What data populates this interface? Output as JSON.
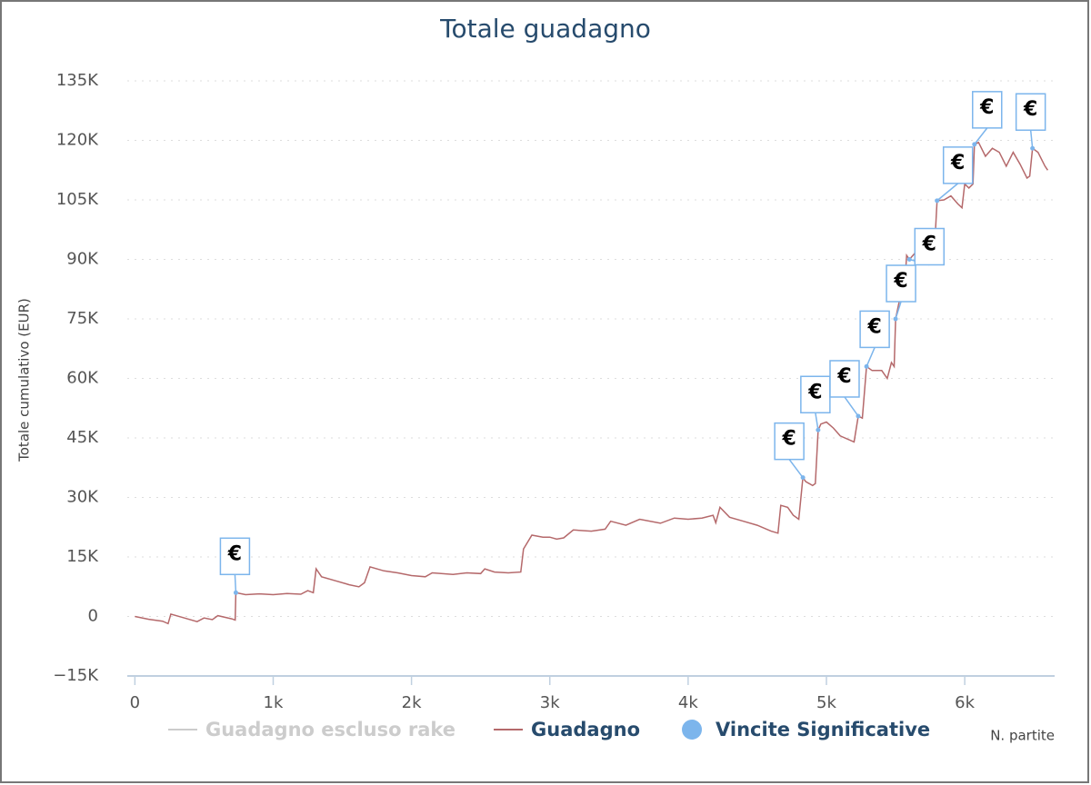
{
  "chart_data": {
    "type": "line",
    "title": "Totale guadagno",
    "ylabel": "Totale cumulativo (EUR)",
    "xlabel": "N. partite",
    "xlim": [
      -55,
      6650
    ],
    "ylim": [
      -15000,
      135000
    ],
    "xticks": [
      0,
      {
        "value": 1000,
        "label": "1k"
      },
      {
        "value": 2000,
        "label": "2k"
      },
      {
        "value": 3000,
        "label": "3k"
      },
      {
        "value": 4000,
        "label": "4k"
      },
      {
        "value": 5000,
        "label": "5k"
      },
      {
        "value": 6000,
        "label": "6k"
      }
    ],
    "yticks": [
      {
        "value": -15000,
        "label": "−15K"
      },
      0,
      {
        "value": 15000,
        "label": "15K"
      },
      {
        "value": 30000,
        "label": "30K"
      },
      {
        "value": 45000,
        "label": "45K"
      },
      {
        "value": 60000,
        "label": "60K"
      },
      {
        "value": 75000,
        "label": "75K"
      },
      {
        "value": 90000,
        "label": "90K"
      },
      {
        "value": 105000,
        "label": "105K"
      },
      {
        "value": 120000,
        "label": "120K"
      },
      {
        "value": 135000,
        "label": "135K"
      }
    ],
    "grid": true,
    "hidden_series": [
      {
        "name": "Guadagno escluso rake",
        "color": "#cccccc"
      }
    ],
    "series": [
      {
        "name": "Guadagno",
        "color": "#b5696b",
        "x": [
          0,
          100,
          200,
          240,
          260,
          350,
          450,
          500,
          560,
          600,
          700,
          725,
          730,
          800,
          900,
          1000,
          1100,
          1200,
          1250,
          1290,
          1310,
          1350,
          1450,
          1550,
          1620,
          1660,
          1700,
          1800,
          1900,
          2000,
          2100,
          2150,
          2300,
          2400,
          2500,
          2530,
          2600,
          2700,
          2790,
          2810,
          2870,
          2950,
          3000,
          3050,
          3100,
          3170,
          3300,
          3400,
          3440,
          3550,
          3650,
          3800,
          3900,
          4000,
          4100,
          4180,
          4200,
          4230,
          4300,
          4400,
          4500,
          4600,
          4650,
          4670,
          4720,
          4760,
          4800,
          4830,
          4850,
          4900,
          4920,
          4940,
          4960,
          5000,
          5050,
          5100,
          5200,
          5230,
          5260,
          5290,
          5330,
          5400,
          5440,
          5470,
          5490,
          5500,
          5530,
          5560,
          5580,
          5600,
          5650,
          5700,
          5760,
          5780,
          5800,
          5850,
          5900,
          5950,
          5980,
          6000,
          6030,
          6060,
          6070,
          6100,
          6150,
          6200,
          6250,
          6300,
          6350,
          6400,
          6450,
          6470,
          6490,
          6530,
          6580,
          6600
        ],
        "values": [
          0,
          -700,
          -1200,
          -1800,
          600,
          -300,
          -1300,
          -400,
          -800,
          200,
          -600,
          -900,
          6000,
          5500,
          5700,
          5500,
          5800,
          5600,
          6500,
          6000,
          12000,
          10000,
          9000,
          8000,
          7500,
          8500,
          12500,
          11500,
          11000,
          10300,
          10000,
          11000,
          10600,
          11000,
          10800,
          12000,
          11200,
          11000,
          11200,
          17000,
          20500,
          20000,
          20000,
          19500,
          19800,
          21800,
          21500,
          22000,
          24000,
          23000,
          24500,
          23500,
          24800,
          24500,
          24800,
          25500,
          23600,
          27500,
          25000,
          24000,
          23000,
          21500,
          21000,
          28000,
          27500,
          25500,
          24500,
          35000,
          34000,
          33000,
          33500,
          47000,
          48500,
          49000,
          47500,
          45500,
          44000,
          50500,
          50000,
          63000,
          62000,
          62000,
          60000,
          64000,
          63000,
          75000,
          80000,
          80000,
          91000,
          90000,
          92000,
          94500,
          97000,
          92000,
          104800,
          105000,
          106000,
          104000,
          103000,
          109000,
          108000,
          109000,
          119000,
          119500,
          116000,
          118000,
          117000,
          113500,
          117000,
          114000,
          110500,
          111000,
          118000,
          117000,
          113500,
          112500
        ]
      },
      {
        "name": "Vincite Significative",
        "type": "scatter",
        "color": "#7cb5ec",
        "x": [
          730,
          4830,
          4940,
          5230,
          5290,
          5500,
          5600,
          5800,
          6070,
          6490
        ],
        "values": [
          6000,
          35000,
          47000,
          50500,
          63000,
          75000,
          90000,
          104800,
          119000,
          118000
        ],
        "labels": [
          "€",
          "€",
          "€",
          "€",
          "€",
          "€",
          "€",
          "€",
          "€",
          "€"
        ]
      }
    ]
  }
}
